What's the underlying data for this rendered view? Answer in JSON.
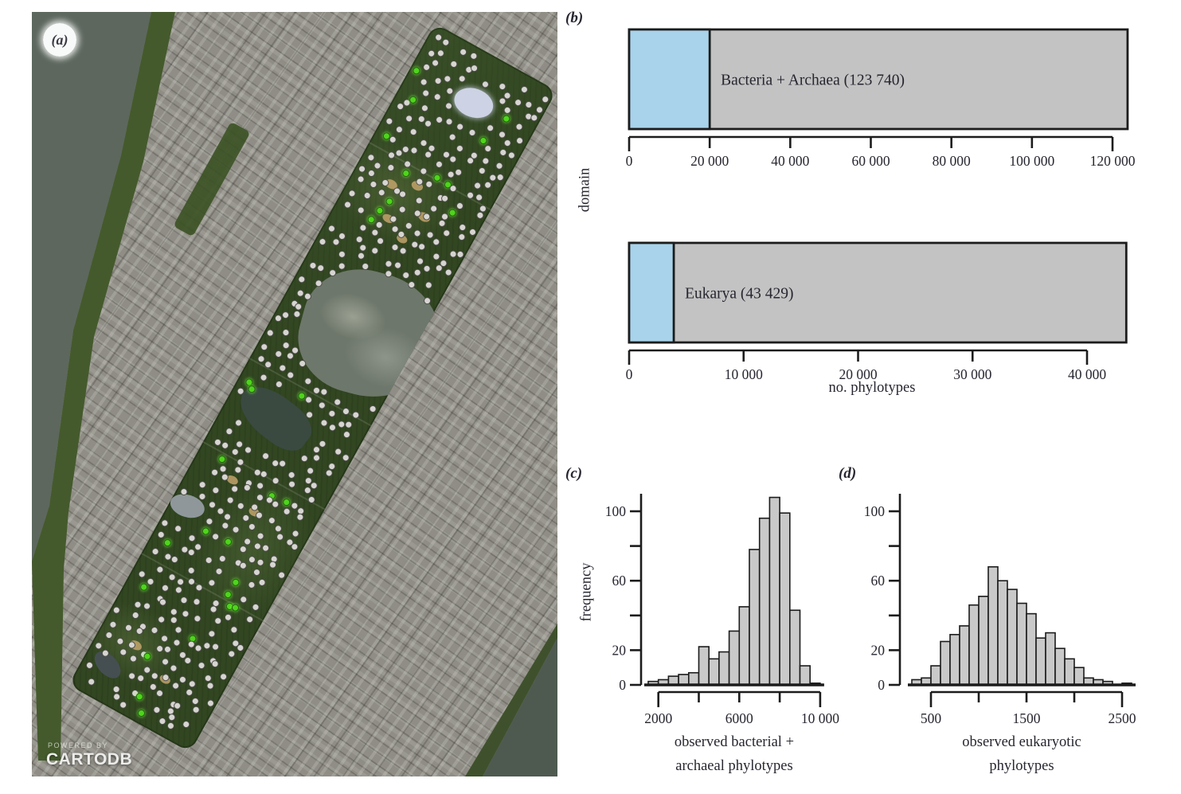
{
  "colors": {
    "highlight_blue": "#a8d3ea",
    "bar_gray": "#c3c3c3",
    "hist_fill": "#c9c9c9",
    "axis": "#1c1c1c",
    "text": "#262630",
    "dot_gray": "#d7d5d1",
    "dot_green": "#4fd41c"
  },
  "panel_a": {
    "label": "(a)",
    "attribution_powered": "POWERED BY",
    "attribution_brand": "CARTODB",
    "gray_dot_count": 460,
    "green_dot_count": 27
  },
  "panel_b": {
    "label": "(b)",
    "ylabel": "domain",
    "xlabel": "no. phylotypes"
  },
  "panel_c": {
    "label": "(c)",
    "ylabel": "frequency",
    "xlabel_line1": "observed bacterial +",
    "xlabel_line2": "archaeal phylotypes"
  },
  "panel_d": {
    "label": "(d)",
    "xlabel_line1": "observed eukaryotic",
    "xlabel_line2": "phylotypes"
  },
  "chart_data": [
    {
      "type": "bar",
      "panel": "b_top",
      "orientation": "horizontal",
      "category": "Bacteria + Archaea",
      "bar_label": "Bacteria + Archaea (123 740)",
      "total": 123740,
      "highlight_value": 20000,
      "xticks": [
        0,
        20000,
        40000,
        60000,
        80000,
        100000,
        120000
      ],
      "xtick_labels": [
        "0",
        "20 000",
        "40 000",
        "60 000",
        "80 000",
        "100 000",
        "120 000"
      ]
    },
    {
      "type": "bar",
      "panel": "b_bottom",
      "orientation": "horizontal",
      "category": "Eukarya",
      "bar_label": "Eukarya (43 429)",
      "total": 43429,
      "highlight_value": 3900,
      "xticks": [
        0,
        10000,
        20000,
        30000,
        40000
      ],
      "xtick_labels": [
        "0",
        "10 000",
        "20 000",
        "30 000",
        "40 000"
      ]
    },
    {
      "type": "histogram",
      "panel": "c",
      "title": "",
      "xlabel": "observed bacterial + archaeal phylotypes",
      "ylabel": "frequency",
      "bin_start": 1500,
      "bin_width": 500,
      "frequencies": [
        2,
        3,
        5,
        6,
        7,
        22,
        15,
        19,
        31,
        45,
        78,
        96,
        108,
        99,
        43,
        11,
        1
      ],
      "yticks": [
        0,
        20,
        40,
        60,
        80,
        100
      ],
      "ytick_labels": [
        "0",
        "20",
        "",
        "60",
        "",
        "100"
      ],
      "xticks": [
        2000,
        4000,
        6000,
        8000,
        10000
      ],
      "xtick_labels": [
        "2000",
        "",
        "6000",
        "",
        "10 000"
      ],
      "ylim": [
        0,
        115
      ]
    },
    {
      "type": "histogram",
      "panel": "d",
      "title": "",
      "xlabel": "observed eukaryotic phylotypes",
      "ylabel": "",
      "bin_start": 300,
      "bin_width": 100,
      "frequencies": [
        3,
        4,
        11,
        25,
        29,
        34,
        46,
        51,
        68,
        60,
        55,
        47,
        41,
        27,
        30,
        21,
        15,
        10,
        4,
        3,
        2,
        0,
        1
      ],
      "yticks": [
        0,
        20,
        40,
        60,
        80,
        100
      ],
      "ytick_labels": [
        "0",
        "20",
        "",
        "60",
        "",
        "100"
      ],
      "xticks": [
        500,
        1000,
        1500,
        2000,
        2500
      ],
      "xtick_labels": [
        "500",
        "",
        "1500",
        "",
        "2500"
      ],
      "ylim": [
        0,
        115
      ]
    }
  ]
}
